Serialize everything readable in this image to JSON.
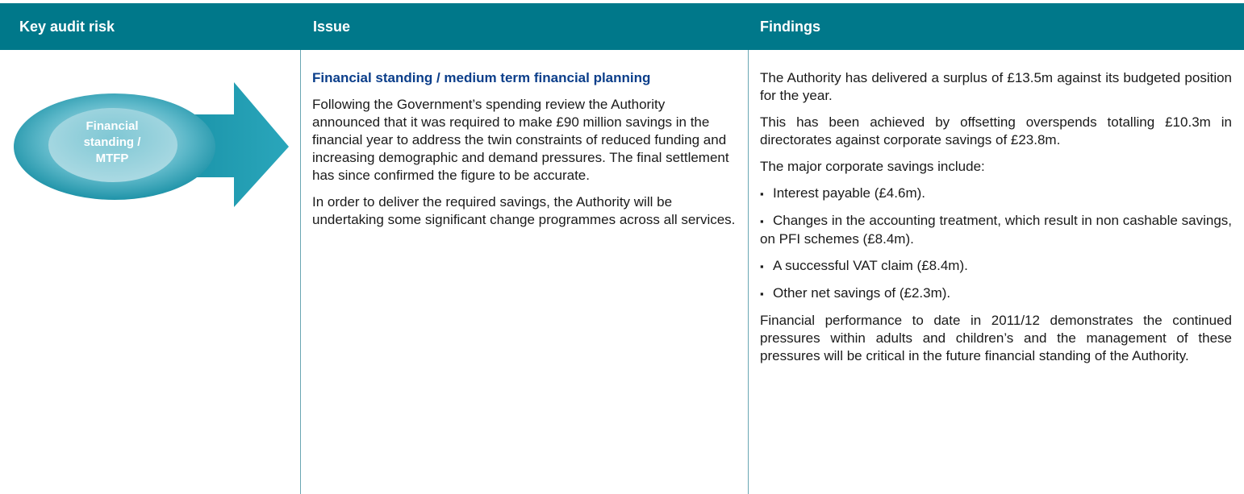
{
  "table": {
    "header": [
      "Key audit risk",
      "Issue",
      "Findings"
    ],
    "risk_label": "Financial standing / MTFP",
    "issue": {
      "title": "Financial standing / medium term financial planning",
      "paragraphs": [
        "Following the Government’s spending review the Authority announced that it was required to make £90 million savings in the financial year  to address the twin constraints of reduced funding and increasing demographic and demand pressures. The final settlement has since confirmed the figure to be accurate.",
        "In order to deliver the required savings, the Authority will be undertaking some significant change programmes across all services."
      ]
    },
    "findings": {
      "intro": [
        "The Authority has delivered a surplus of £13.5m against its budgeted position for the year.",
        "This has been achieved by offsetting overspends totalling £10.3m in directorates against corporate savings of £23.8m.",
        "The major corporate savings include:"
      ],
      "bullets": [
        "Interest payable (£4.6m).",
        "Changes in the accounting treatment, which result in non cashable savings, on PFI schemes (£8.4m).",
        "A successful VAT claim (£8.4m).",
        "Other net savings of (£2.3m)."
      ],
      "conclusion": "Financial performance to date in 2011/12 demonstrates the continued pressures within adults and children’s and the management of these pressures will be critical in the future financial standing of the Authority."
    }
  }
}
